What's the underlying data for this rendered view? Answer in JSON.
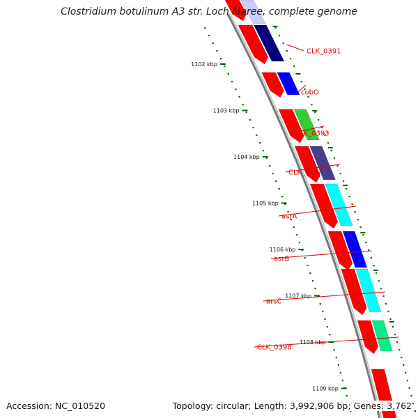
{
  "title": "Clostridium botulinum A3 str. Loch Maree, complete genome",
  "footer": {
    "accession": "Accession: NC_010520",
    "topology": "Topology: circular; Length: 3,992,906 bp; Genes: 3,762"
  },
  "ticks": [
    {
      "label": "1102 kbp",
      "position_kbp": 1102
    },
    {
      "label": "1103 kbp",
      "position_kbp": 1103
    },
    {
      "label": "1104 kbp",
      "position_kbp": 1104
    },
    {
      "label": "1105 kbp",
      "position_kbp": 1105
    },
    {
      "label": "1106 kbp",
      "position_kbp": 1106
    },
    {
      "label": "1107 kbp",
      "position_kbp": 1107
    },
    {
      "label": "1108 kbp",
      "position_kbp": 1108
    },
    {
      "label": "1109 kbp",
      "position_kbp": 1109
    }
  ],
  "genes": [
    {
      "label": "CLK_0391",
      "color": "#000080"
    },
    {
      "label": "cobO",
      "color": "#0000ff"
    },
    {
      "label": "CLK_0393",
      "color": "#33cc33"
    },
    {
      "label": "CLK_0394",
      "color": "#483d8b"
    },
    {
      "label": "asrA",
      "color": "#00ffff"
    },
    {
      "label": "asrB",
      "color": "#0000ff"
    },
    {
      "label": "arsC",
      "color": "#00ffff"
    },
    {
      "label": "CLK_0398",
      "color": "#00ee88"
    }
  ],
  "colors": {
    "cds": "#ff0000",
    "backbone": "#888888",
    "tick": "#006600",
    "label": "#e00000"
  }
}
